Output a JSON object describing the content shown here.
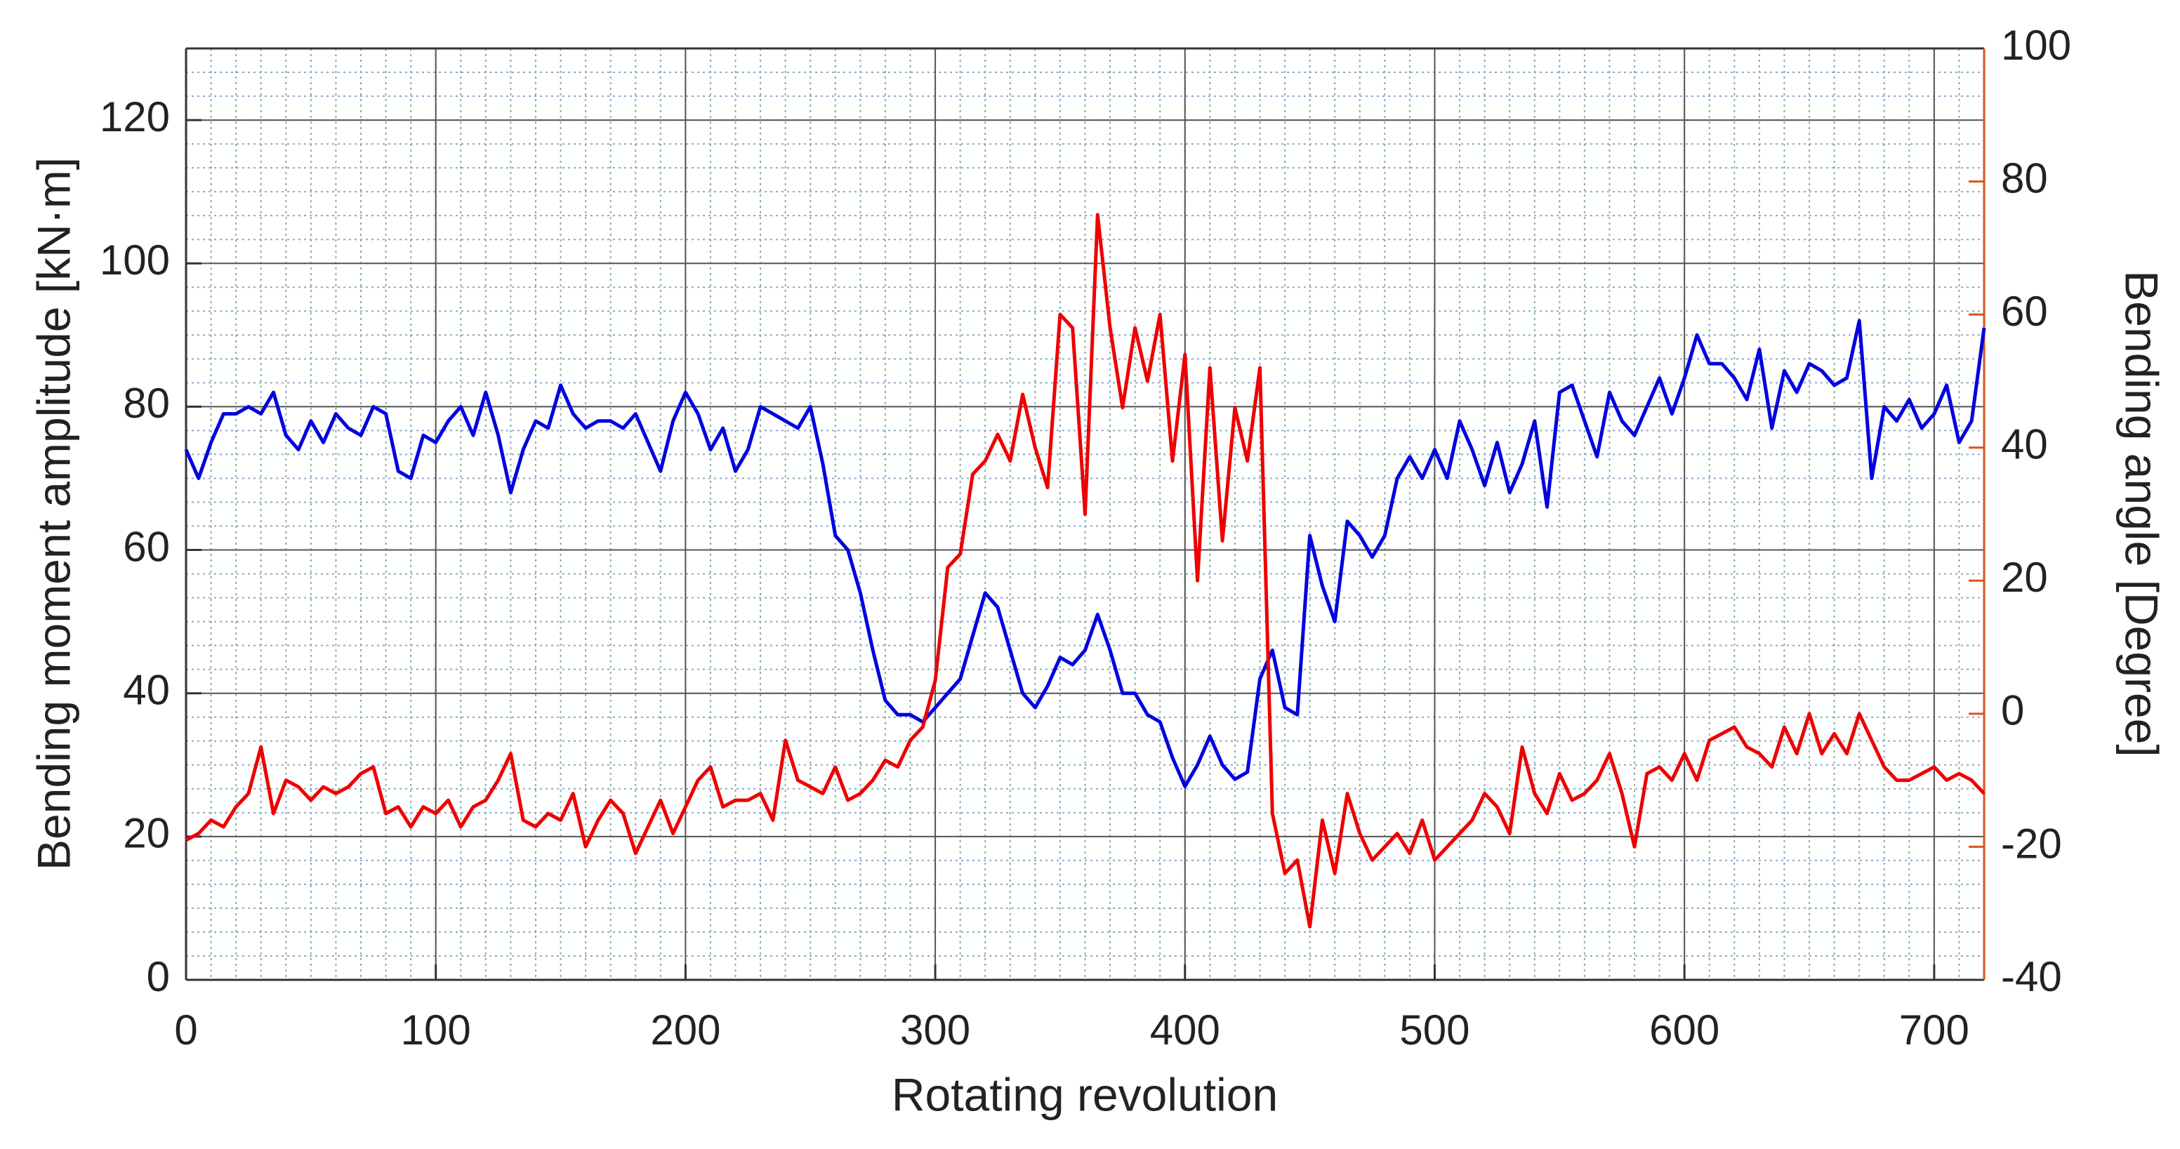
{
  "chart_data": {
    "type": "line",
    "xlabel": "Rotating revolution",
    "ylabel": "Bending moment amplitude [kN·m]",
    "y2label": "Bending angle [Degree]",
    "xlim": [
      0,
      720
    ],
    "xticks": [
      0,
      100,
      200,
      300,
      400,
      500,
      600,
      700
    ],
    "ylim": [
      0,
      130
    ],
    "yticks": [
      0,
      20,
      40,
      60,
      80,
      100,
      120
    ],
    "y2lim": [
      -40,
      100
    ],
    "y2ticks": [
      -40,
      -20,
      0,
      20,
      40,
      60,
      80,
      100
    ],
    "grid": true,
    "minor_grid": true,
    "ylabel_color": "#0072bd",
    "y2label_color": "#d95319",
    "x": [
      0,
      5,
      10,
      15,
      20,
      25,
      30,
      35,
      40,
      45,
      50,
      55,
      60,
      65,
      70,
      75,
      80,
      85,
      90,
      95,
      100,
      105,
      110,
      115,
      120,
      125,
      130,
      135,
      140,
      145,
      150,
      155,
      160,
      165,
      170,
      175,
      180,
      185,
      190,
      195,
      200,
      205,
      210,
      215,
      220,
      225,
      230,
      235,
      240,
      245,
      250,
      255,
      260,
      265,
      270,
      275,
      280,
      285,
      290,
      295,
      300,
      305,
      310,
      315,
      320,
      325,
      330,
      335,
      340,
      345,
      350,
      355,
      360,
      365,
      370,
      375,
      380,
      385,
      390,
      395,
      400,
      405,
      410,
      415,
      420,
      425,
      430,
      435,
      440,
      445,
      450,
      455,
      460,
      465,
      470,
      475,
      480,
      485,
      490,
      495,
      500,
      505,
      510,
      515,
      520,
      525,
      530,
      535,
      540,
      545,
      550,
      555,
      560,
      565,
      570,
      575,
      580,
      585,
      590,
      595,
      600,
      605,
      610,
      615,
      620,
      625,
      630,
      635,
      640,
      645,
      650,
      655,
      660,
      665,
      670,
      675,
      680,
      685,
      690,
      695,
      700,
      705,
      710,
      715,
      720
    ],
    "series": [
      {
        "name": "Bending moment amplitude",
        "color": "#0000e0",
        "axis": "y",
        "values": [
          74,
          70,
          75,
          79,
          79,
          80,
          79,
          82,
          76,
          74,
          78,
          75,
          79,
          77,
          76,
          80,
          79,
          71,
          70,
          76,
          75,
          78,
          80,
          76,
          82,
          76,
          68,
          74,
          78,
          77,
          83,
          79,
          77,
          78,
          78,
          77,
          79,
          75,
          71,
          78,
          82,
          79,
          74,
          77,
          71,
          74,
          80,
          79,
          78,
          77,
          80,
          72,
          62,
          60,
          54,
          46,
          39,
          37,
          37,
          36,
          38,
          40,
          42,
          48,
          54,
          52,
          46,
          40,
          38,
          41,
          45,
          44,
          46,
          51,
          46,
          40,
          40,
          37,
          36,
          31,
          27,
          30,
          34,
          30,
          28,
          29,
          42,
          46,
          38,
          37,
          62,
          55,
          50,
          64,
          62,
          59,
          62,
          70,
          73,
          70,
          74,
          70,
          78,
          74,
          69,
          75,
          68,
          72,
          78,
          66,
          82,
          83,
          78,
          73,
          82,
          78,
          76,
          80,
          84,
          79,
          84,
          90,
          86,
          86,
          84,
          81,
          88,
          77,
          85,
          82,
          86,
          85,
          83,
          84,
          92,
          70,
          80,
          78,
          81,
          77,
          79,
          83,
          75,
          78,
          91
        ]
      },
      {
        "name": "Bending angle",
        "color": "#ee0000",
        "axis": "y2",
        "values": [
          -19,
          -18,
          -16,
          -17,
          -14,
          -12,
          -5,
          -15,
          -10,
          -11,
          -13,
          -11,
          -12,
          -11,
          -9,
          -8,
          -15,
          -14,
          -17,
          -14,
          -15,
          -13,
          -17,
          -14,
          -13,
          -10,
          -6,
          -16,
          -17,
          -15,
          -16,
          -12,
          -20,
          -16,
          -13,
          -15,
          -21,
          -17,
          -13,
          -18,
          -14,
          -10,
          -8,
          -14,
          -13,
          -13,
          -12,
          -16,
          -4,
          -10,
          -11,
          -12,
          -8,
          -13,
          -12,
          -10,
          -7,
          -8,
          -4,
          -2,
          5,
          22,
          24,
          36,
          38,
          42,
          38,
          48,
          40,
          34,
          60,
          58,
          30,
          75,
          58,
          46,
          58,
          50,
          60,
          38,
          54,
          20,
          52,
          26,
          46,
          38,
          52,
          -15,
          -24,
          -22,
          -32,
          -16,
          -24,
          -12,
          -18,
          -22,
          -20,
          -18,
          -21,
          -16,
          -22,
          -20,
          -18,
          -16,
          -12,
          -14,
          -18,
          -5,
          -12,
          -15,
          -9,
          -13,
          -12,
          -10,
          -6,
          -12,
          -20,
          -9,
          -8,
          -10,
          -6,
          -10,
          -4,
          -3,
          -2,
          -5,
          -6,
          -8,
          -2,
          -6,
          0,
          -6,
          -3,
          -6,
          0,
          -4,
          -8,
          -10,
          -10,
          -9,
          -8,
          -10,
          -9,
          -10,
          -12
        ]
      }
    ]
  }
}
